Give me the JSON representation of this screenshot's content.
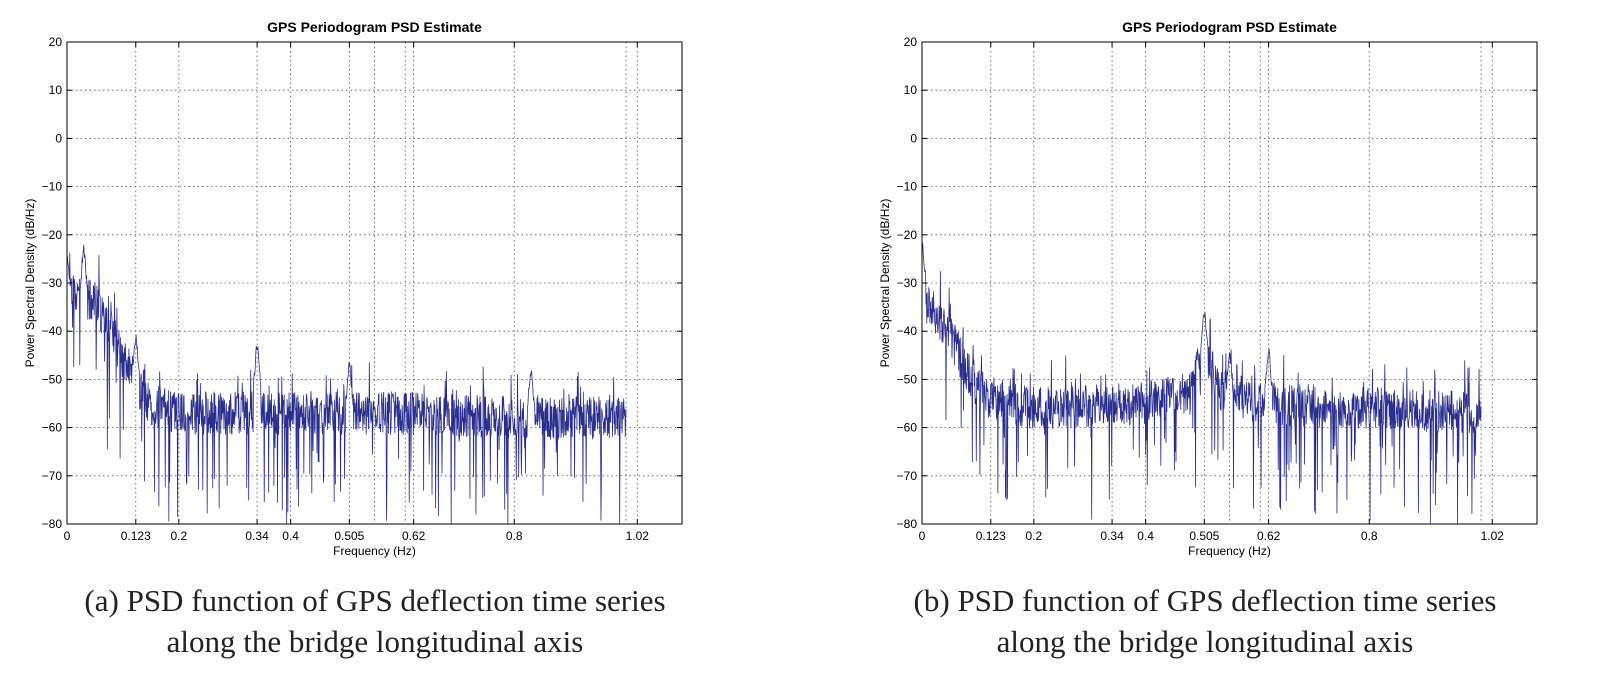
{
  "chart_data": [
    {
      "type": "line",
      "title": "GPS Periodogram PSD Estimate",
      "xlabel": "Frequency (Hz)",
      "ylabel": "Power Spectral Density (dB/Hz)",
      "xlim": [
        0,
        1.1
      ],
      "ylim": [
        -80,
        20
      ],
      "xticks": [
        0,
        0.123,
        0.2,
        0.34,
        0.4,
        0.505,
        0.62,
        0.8,
        1.02
      ],
      "xtick_labels": [
        "0",
        "0.123",
        "0.2",
        "0.34",
        "0.4",
        "0.505",
        "0.62",
        "0.8",
        "1.02"
      ],
      "yticks": [
        -80,
        -70,
        -60,
        -50,
        -40,
        -30,
        -20,
        -10,
        0,
        10,
        20
      ],
      "ytick_labels": [
        "−80",
        "−70",
        "−60",
        "−50",
        "−40",
        "−30",
        "−20",
        "−10",
        "0",
        "10",
        "20"
      ],
      "extra_vgrid": [
        0.55,
        0.605,
        1.0
      ],
      "grid": true,
      "line_color": "#2a2f8f",
      "x_end": 1.0,
      "seed": 17,
      "series": [
        {
          "baseline": [
            [
              0,
              -31
            ],
            [
              0.02,
              -32
            ],
            [
              0.05,
              -34
            ],
            [
              0.08,
              -40
            ],
            [
              0.1,
              -46
            ],
            [
              0.123,
              -50
            ],
            [
              0.14,
              -55
            ],
            [
              0.2,
              -57
            ],
            [
              0.4,
              -57
            ],
            [
              0.6,
              -57
            ],
            [
              0.8,
              -58
            ],
            [
              1.0,
              -58
            ]
          ],
          "peaks": [
            [
              0.0,
              -24
            ],
            [
              0.03,
              -23
            ],
            [
              0.123,
              -41
            ],
            [
              0.34,
              -43
            ],
            [
              0.505,
              -47
            ],
            [
              0.83,
              -48
            ]
          ]
        }
      ],
      "caption_lines": [
        "(a) PSD function of GPS deflection time series",
        "along the bridge longitudinal axis"
      ]
    },
    {
      "type": "line",
      "title": "GPS Periodogram PSD Estimate",
      "xlabel": "Frequency (Hz)",
      "ylabel": "Power Spectral Density (dB/Hz)",
      "xlim": [
        0,
        1.1
      ],
      "ylim": [
        -80,
        20
      ],
      "xticks": [
        0,
        0.123,
        0.2,
        0.34,
        0.4,
        0.505,
        0.62,
        0.8,
        1.02
      ],
      "xtick_labels": [
        "0",
        "0.123",
        "0.2",
        "0.34",
        "0.4",
        "0.505",
        "0.62",
        "0.8",
        "1.02"
      ],
      "yticks": [
        -80,
        -70,
        -60,
        -50,
        -40,
        -30,
        -20,
        -10,
        0,
        10,
        20
      ],
      "ytick_labels": [
        "−80",
        "−70",
        "−60",
        "−50",
        "−40",
        "−30",
        "−20",
        "−10",
        "0",
        "10",
        "20"
      ],
      "extra_vgrid": [
        0.55,
        0.605,
        1.0
      ],
      "grid": true,
      "line_color": "#2a2f8f",
      "x_end": 1.0,
      "seed": 53,
      "series": [
        {
          "baseline": [
            [
              0,
              -30
            ],
            [
              0.02,
              -36
            ],
            [
              0.05,
              -41
            ],
            [
              0.08,
              -48
            ],
            [
              0.1,
              -52
            ],
            [
              0.123,
              -54
            ],
            [
              0.2,
              -56
            ],
            [
              0.4,
              -55
            ],
            [
              0.48,
              -53
            ],
            [
              0.505,
              -43
            ],
            [
              0.53,
              -52
            ],
            [
              0.6,
              -55
            ],
            [
              0.8,
              -56
            ],
            [
              1.0,
              -57
            ]
          ],
          "peaks": [
            [
              0.0,
              -21
            ],
            [
              0.505,
              -36
            ],
            [
              0.55,
              -45
            ],
            [
              0.62,
              -44
            ]
          ]
        }
      ],
      "caption_lines": [
        "(b) PSD function of GPS deflection time series",
        "along the bridge longitudinal axis"
      ]
    }
  ]
}
